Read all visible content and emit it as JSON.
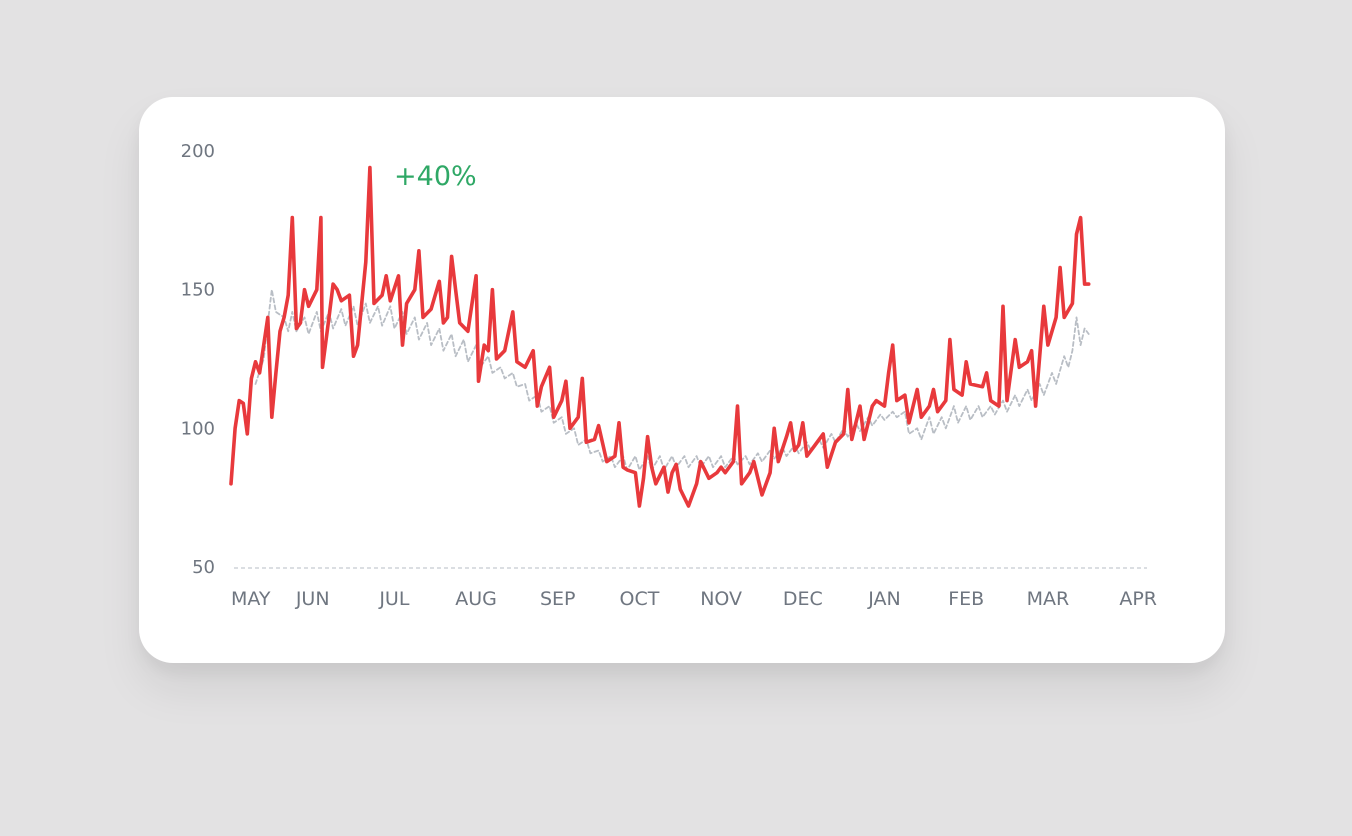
{
  "colors": {
    "background": "#e3e2e3",
    "card": "#ffffff",
    "primary_line": "#e8393c",
    "comparison_line": "#b9bec5",
    "annotation": "#2fa866",
    "tick_text": "#6f7680",
    "baseline": "#cfd3d8"
  },
  "chart_data": {
    "type": "line",
    "title": "",
    "xlabel": "",
    "ylabel": "",
    "ylim": [
      50,
      200
    ],
    "yticks": [
      50,
      100,
      150,
      200
    ],
    "ytick_labels": [
      "50",
      "100",
      "150",
      "200"
    ],
    "xtick_labels": [
      "MAY",
      "JUN",
      "JUL",
      "AUG",
      "SEP",
      "OCT",
      "NOV",
      "DEC",
      "JAN",
      "FEB",
      "MAR",
      "APR"
    ],
    "x_range_months": [
      0,
      11.25
    ],
    "grid": false,
    "legend": "none",
    "annotation": {
      "text": "+40%",
      "at_month": 1.8,
      "y": 192
    },
    "series": [
      {
        "style": "solid",
        "color": "#e8393c",
        "points": [
          [
            0.0,
            80
          ],
          [
            0.05,
            100
          ],
          [
            0.1,
            110
          ],
          [
            0.15,
            109
          ],
          [
            0.2,
            98
          ],
          [
            0.25,
            118
          ],
          [
            0.3,
            124
          ],
          [
            0.35,
            120
          ],
          [
            0.4,
            130
          ],
          [
            0.45,
            140
          ],
          [
            0.5,
            104
          ],
          [
            0.55,
            120
          ],
          [
            0.6,
            135
          ],
          [
            0.65,
            140
          ],
          [
            0.7,
            148
          ],
          [
            0.75,
            176
          ],
          [
            0.8,
            136
          ],
          [
            0.85,
            138
          ],
          [
            0.9,
            150
          ],
          [
            0.95,
            144
          ],
          [
            1.0,
            147
          ],
          [
            1.05,
            150
          ],
          [
            1.1,
            176
          ],
          [
            1.12,
            122
          ],
          [
            1.2,
            140
          ],
          [
            1.25,
            152
          ],
          [
            1.3,
            150
          ],
          [
            1.35,
            146
          ],
          [
            1.45,
            148
          ],
          [
            1.5,
            126
          ],
          [
            1.55,
            130
          ],
          [
            1.65,
            160
          ],
          [
            1.7,
            194
          ],
          [
            1.75,
            145
          ],
          [
            1.85,
            148
          ],
          [
            1.9,
            155
          ],
          [
            1.95,
            146
          ],
          [
            2.05,
            155
          ],
          [
            2.1,
            130
          ],
          [
            2.15,
            145
          ],
          [
            2.25,
            150
          ],
          [
            2.3,
            164
          ],
          [
            2.35,
            140
          ],
          [
            2.45,
            143
          ],
          [
            2.55,
            153
          ],
          [
            2.6,
            138
          ],
          [
            2.65,
            140
          ],
          [
            2.7,
            162
          ],
          [
            2.75,
            150
          ],
          [
            2.8,
            138
          ],
          [
            2.9,
            135
          ],
          [
            3.0,
            155
          ],
          [
            3.03,
            117
          ],
          [
            3.1,
            130
          ],
          [
            3.15,
            128
          ],
          [
            3.2,
            150
          ],
          [
            3.25,
            125
          ],
          [
            3.35,
            128
          ],
          [
            3.45,
            142
          ],
          [
            3.5,
            124
          ],
          [
            3.6,
            122
          ],
          [
            3.7,
            128
          ],
          [
            3.75,
            108
          ],
          [
            3.8,
            115
          ],
          [
            3.9,
            122
          ],
          [
            3.95,
            104
          ],
          [
            4.05,
            110
          ],
          [
            4.1,
            117
          ],
          [
            4.15,
            100
          ],
          [
            4.25,
            104
          ],
          [
            4.3,
            118
          ],
          [
            4.35,
            95
          ],
          [
            4.45,
            96
          ],
          [
            4.5,
            101
          ],
          [
            4.6,
            88
          ],
          [
            4.7,
            90
          ],
          [
            4.75,
            102
          ],
          [
            4.8,
            86
          ],
          [
            4.85,
            85
          ],
          [
            4.95,
            84
          ],
          [
            5.0,
            72
          ],
          [
            5.05,
            82
          ],
          [
            5.1,
            97
          ],
          [
            5.15,
            86
          ],
          [
            5.2,
            80
          ],
          [
            5.3,
            86
          ],
          [
            5.35,
            77
          ],
          [
            5.4,
            84
          ],
          [
            5.45,
            87
          ],
          [
            5.5,
            78
          ],
          [
            5.6,
            72
          ],
          [
            5.7,
            80
          ],
          [
            5.75,
            88
          ],
          [
            5.85,
            82
          ],
          [
            5.95,
            84
          ],
          [
            6.0,
            86
          ],
          [
            6.05,
            84
          ],
          [
            6.15,
            88
          ],
          [
            6.2,
            108
          ],
          [
            6.25,
            80
          ],
          [
            6.35,
            84
          ],
          [
            6.4,
            88
          ],
          [
            6.5,
            76
          ],
          [
            6.6,
            84
          ],
          [
            6.65,
            100
          ],
          [
            6.7,
            88
          ],
          [
            6.8,
            97
          ],
          [
            6.85,
            102
          ],
          [
            6.9,
            92
          ],
          [
            6.95,
            94
          ],
          [
            7.0,
            102
          ],
          [
            7.05,
            90
          ],
          [
            7.15,
            94
          ],
          [
            7.25,
            98
          ],
          [
            7.3,
            86
          ],
          [
            7.4,
            95
          ],
          [
            7.5,
            98
          ],
          [
            7.55,
            114
          ],
          [
            7.6,
            96
          ],
          [
            7.7,
            108
          ],
          [
            7.75,
            96
          ],
          [
            7.85,
            108
          ],
          [
            7.9,
            110
          ],
          [
            8.0,
            108
          ],
          [
            8.05,
            120
          ],
          [
            8.1,
            130
          ],
          [
            8.15,
            110
          ],
          [
            8.25,
            112
          ],
          [
            8.3,
            102
          ],
          [
            8.4,
            114
          ],
          [
            8.45,
            104
          ],
          [
            8.55,
            108
          ],
          [
            8.6,
            114
          ],
          [
            8.65,
            106
          ],
          [
            8.75,
            110
          ],
          [
            8.8,
            132
          ],
          [
            8.85,
            114
          ],
          [
            8.95,
            112
          ],
          [
            9.0,
            124
          ],
          [
            9.05,
            116
          ],
          [
            9.2,
            115
          ],
          [
            9.25,
            120
          ],
          [
            9.3,
            110
          ],
          [
            9.4,
            108
          ],
          [
            9.45,
            144
          ],
          [
            9.5,
            110
          ],
          [
            9.6,
            132
          ],
          [
            9.65,
            122
          ],
          [
            9.75,
            124
          ],
          [
            9.8,
            128
          ],
          [
            9.85,
            108
          ],
          [
            9.95,
            144
          ],
          [
            10.0,
            130
          ],
          [
            10.1,
            140
          ],
          [
            10.15,
            158
          ],
          [
            10.2,
            140
          ],
          [
            10.3,
            145
          ],
          [
            10.35,
            170
          ],
          [
            10.4,
            176
          ],
          [
            10.45,
            152
          ],
          [
            10.5,
            152
          ]
        ]
      },
      {
        "style": "dashed",
        "color": "#b9bec5",
        "points": [
          [
            0.3,
            116
          ],
          [
            0.4,
            125
          ],
          [
            0.45,
            138
          ],
          [
            0.5,
            150
          ],
          [
            0.55,
            142
          ],
          [
            0.65,
            140
          ],
          [
            0.7,
            135
          ],
          [
            0.75,
            142
          ],
          [
            0.8,
            135
          ],
          [
            0.9,
            140
          ],
          [
            0.95,
            134
          ],
          [
            1.05,
            142
          ],
          [
            1.1,
            135
          ],
          [
            1.2,
            142
          ],
          [
            1.25,
            136
          ],
          [
            1.35,
            143
          ],
          [
            1.4,
            137
          ],
          [
            1.5,
            144
          ],
          [
            1.55,
            137
          ],
          [
            1.65,
            145
          ],
          [
            1.7,
            138
          ],
          [
            1.8,
            144
          ],
          [
            1.85,
            137
          ],
          [
            1.95,
            144
          ],
          [
            2.0,
            136
          ],
          [
            2.1,
            142
          ],
          [
            2.15,
            134
          ],
          [
            2.25,
            140
          ],
          [
            2.3,
            132
          ],
          [
            2.4,
            138
          ],
          [
            2.45,
            130
          ],
          [
            2.55,
            136
          ],
          [
            2.6,
            128
          ],
          [
            2.7,
            134
          ],
          [
            2.75,
            126
          ],
          [
            2.85,
            132
          ],
          [
            2.9,
            124
          ],
          [
            3.0,
            130
          ],
          [
            3.05,
            122
          ],
          [
            3.15,
            126
          ],
          [
            3.2,
            120
          ],
          [
            3.3,
            122
          ],
          [
            3.35,
            118
          ],
          [
            3.45,
            120
          ],
          [
            3.5,
            115
          ],
          [
            3.6,
            116
          ],
          [
            3.65,
            110
          ],
          [
            3.75,
            112
          ],
          [
            3.8,
            106
          ],
          [
            3.9,
            108
          ],
          [
            3.95,
            102
          ],
          [
            4.05,
            104
          ],
          [
            4.1,
            98
          ],
          [
            4.2,
            100
          ],
          [
            4.25,
            94
          ],
          [
            4.35,
            96
          ],
          [
            4.4,
            91
          ],
          [
            4.5,
            92
          ],
          [
            4.55,
            88
          ],
          [
            4.65,
            90
          ],
          [
            4.7,
            86
          ],
          [
            4.8,
            90
          ],
          [
            4.85,
            85
          ],
          [
            4.95,
            90
          ],
          [
            5.0,
            85
          ],
          [
            5.1,
            90
          ],
          [
            5.15,
            85
          ],
          [
            5.25,
            90
          ],
          [
            5.3,
            85
          ],
          [
            5.4,
            90
          ],
          [
            5.45,
            86
          ],
          [
            5.55,
            90
          ],
          [
            5.6,
            86
          ],
          [
            5.7,
            90
          ],
          [
            5.75,
            86
          ],
          [
            5.85,
            90
          ],
          [
            5.9,
            86
          ],
          [
            6.0,
            90
          ],
          [
            6.05,
            86
          ],
          [
            6.15,
            90
          ],
          [
            6.2,
            87
          ],
          [
            6.3,
            90
          ],
          [
            6.35,
            87
          ],
          [
            6.45,
            91
          ],
          [
            6.5,
            88
          ],
          [
            6.6,
            92
          ],
          [
            6.65,
            89
          ],
          [
            6.75,
            93
          ],
          [
            6.8,
            90
          ],
          [
            6.9,
            94
          ],
          [
            6.95,
            91
          ],
          [
            7.05,
            95
          ],
          [
            7.1,
            92
          ],
          [
            7.2,
            96
          ],
          [
            7.25,
            93
          ],
          [
            7.35,
            98
          ],
          [
            7.4,
            95
          ],
          [
            7.5,
            100
          ],
          [
            7.55,
            97
          ],
          [
            7.65,
            102
          ],
          [
            7.7,
            99
          ],
          [
            7.8,
            104
          ],
          [
            7.85,
            101
          ],
          [
            7.95,
            105
          ],
          [
            8.0,
            103
          ],
          [
            8.1,
            106
          ],
          [
            8.15,
            104
          ],
          [
            8.25,
            106
          ],
          [
            8.3,
            98
          ],
          [
            8.4,
            100
          ],
          [
            8.45,
            96
          ],
          [
            8.55,
            104
          ],
          [
            8.6,
            98
          ],
          [
            8.7,
            104
          ],
          [
            8.75,
            100
          ],
          [
            8.85,
            108
          ],
          [
            8.9,
            102
          ],
          [
            9.0,
            108
          ],
          [
            9.05,
            103
          ],
          [
            9.15,
            108
          ],
          [
            9.2,
            104
          ],
          [
            9.3,
            108
          ],
          [
            9.35,
            105
          ],
          [
            9.45,
            110
          ],
          [
            9.5,
            106
          ],
          [
            9.6,
            112
          ],
          [
            9.65,
            108
          ],
          [
            9.75,
            114
          ],
          [
            9.8,
            110
          ],
          [
            9.9,
            116
          ],
          [
            9.95,
            112
          ],
          [
            10.05,
            120
          ],
          [
            10.1,
            116
          ],
          [
            10.2,
            126
          ],
          [
            10.25,
            122
          ],
          [
            10.3,
            128
          ],
          [
            10.35,
            140
          ],
          [
            10.4,
            130
          ],
          [
            10.45,
            136
          ],
          [
            10.5,
            134
          ]
        ]
      }
    ]
  }
}
